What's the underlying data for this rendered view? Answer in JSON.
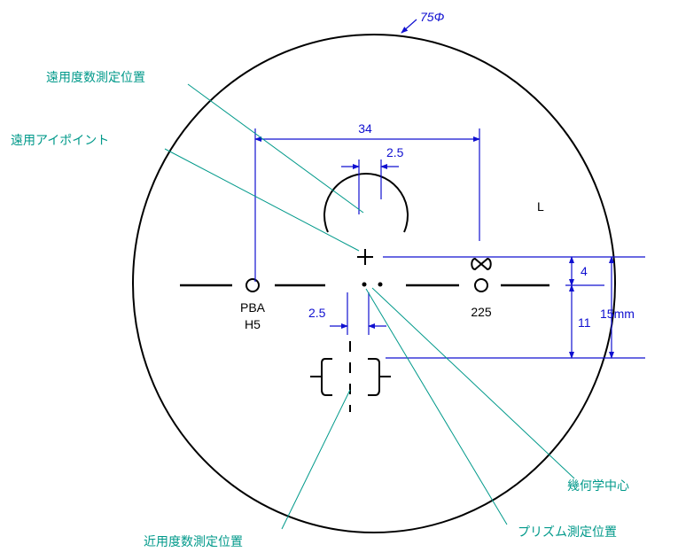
{
  "diagram": {
    "diameter": "75Φ",
    "lens_side": "L",
    "leaders": {
      "far_measure": "遠用度数測定位置",
      "far_eyepoint": "遠用アイポイント",
      "geometric_center": "幾何学中心",
      "prism_measure": "プリズム測定位置",
      "near_measure": "近用度数測定位置"
    },
    "dimensions": {
      "pd_width": "34",
      "far_offset": "2.5",
      "near_offset": "2.5",
      "upper": "4",
      "lower": "11",
      "total": "15mm"
    },
    "marks": {
      "left_line1": "PBA",
      "left_line2": "H5",
      "right": "225"
    }
  }
}
